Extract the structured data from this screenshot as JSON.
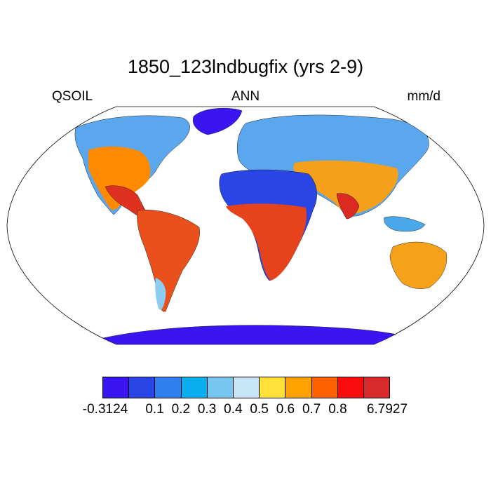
{
  "title": "1850_123lndbugfix (yrs 2-9)",
  "left_label": "QSOIL",
  "center_label": "ANN",
  "right_label": "mm/d",
  "colorbar": {
    "colors": [
      "#3b14f2",
      "#2a45e6",
      "#2f80ee",
      "#08aeee",
      "#76c6f0",
      "#c6e6f8",
      "#ffe13a",
      "#ffa200",
      "#ff6000",
      "#fb0d0d",
      "#d82a2a"
    ],
    "labels": [
      "-0.3124",
      "0.1",
      "0.2",
      "0.3",
      "0.4",
      "0.5",
      "0.6",
      "0.7",
      "0.8",
      "6.7927"
    ]
  }
}
